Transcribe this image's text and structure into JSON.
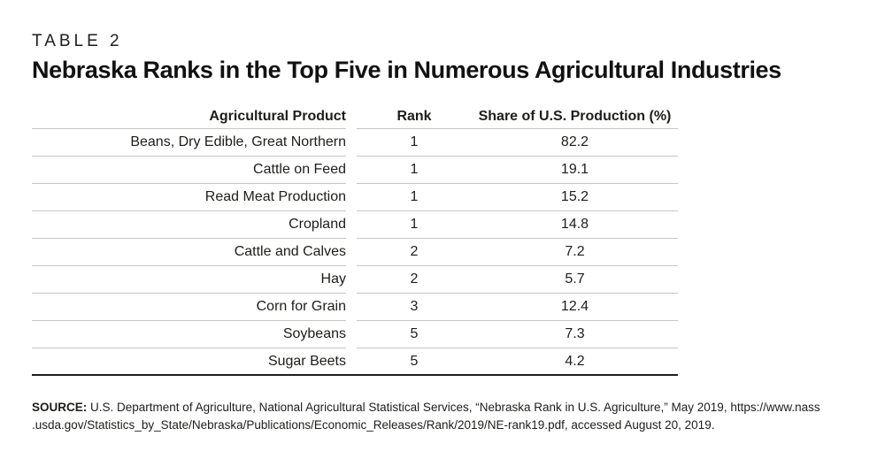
{
  "page": {
    "kicker": "TABLE 2",
    "title": "Nebraska Ranks in the Top Five in Numerous Agricultural Industries"
  },
  "table": {
    "columns": {
      "product": "Agricultural Product",
      "rank": "Rank",
      "share": "Share of U.S. Production (%)"
    },
    "rows": [
      {
        "product": "Beans, Dry Edible, Great Northern",
        "rank": "1",
        "share": "82.2"
      },
      {
        "product": "Cattle on Feed",
        "rank": "1",
        "share": "19.1"
      },
      {
        "product": "Read Meat Production",
        "rank": "1",
        "share": "15.2"
      },
      {
        "product": "Cropland",
        "rank": "1",
        "share": "14.8"
      },
      {
        "product": "Cattle and Calves",
        "rank": "2",
        "share": "7.2"
      },
      {
        "product": "Hay",
        "rank": "2",
        "share": "5.7"
      },
      {
        "product": "Corn for Grain",
        "rank": "3",
        "share": "12.4"
      },
      {
        "product": "Soybeans",
        "rank": "5",
        "share": "7.3"
      },
      {
        "product": "Sugar Beets",
        "rank": "5",
        "share": "4.2"
      }
    ]
  },
  "source": {
    "label": "SOURCE:",
    "line1": " U.S. Department of Agriculture, National Agricultural Statistical Services, “Nebraska Rank in U.S. Agriculture,” May 2019, https://www.nass",
    "line2": ".usda.gov/Statistics_by_State/Nebraska/Publications/Economic_Releases/Rank/2019/NE-rank19.pdf, accessed August 20, 2019."
  },
  "colors": {
    "text": "#1d1d1b",
    "rule_light": "#c6c6c5",
    "rule_heavy": "#1d1d1b",
    "background": "#ffffff"
  }
}
